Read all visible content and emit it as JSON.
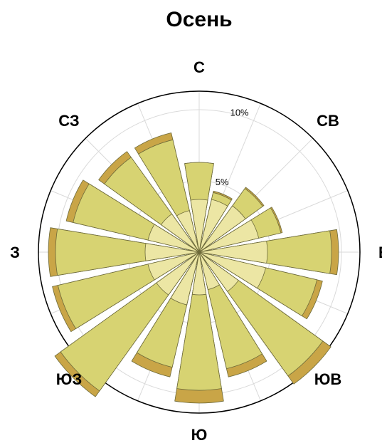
{
  "chart_data": {
    "type": "wind_rose",
    "title": "Осень",
    "radial_ticks": [
      {
        "value": 5,
        "label": "5%"
      },
      {
        "value": 10,
        "label": "10%"
      }
    ],
    "rmax": 11.3,
    "direction_labels": [
      "С",
      "СВ",
      "В",
      "ЮВ",
      "Ю",
      "ЮЗ",
      "З",
      "СЗ"
    ],
    "sector_directions": [
      "N",
      "NNE",
      "NE",
      "ENE",
      "E",
      "ESE",
      "SE",
      "SSE",
      "S",
      "SSW",
      "SW",
      "WSW",
      "W",
      "WNW",
      "NW",
      "NNW"
    ],
    "series": [
      {
        "name": "",
        "color": "#ece6a4",
        "values": [
          3.7,
          3.8,
          4.0,
          4.3,
          4.8,
          4.8,
          3.4,
          2.7,
          3.0,
          3.8,
          3.7,
          3.7,
          3.8,
          3.7,
          3.3,
          3.0
        ]
      },
      {
        "name": "",
        "color": "#d7d372",
        "values": [
          6.3,
          4.3,
          5.5,
          5.9,
          9.3,
          8.5,
          10.7,
          8.4,
          9.7,
          8.3,
          12.0,
          10.2,
          10.1,
          9.1,
          8.2,
          8.1
        ]
      },
      {
        "name": "",
        "color": "#c9a547",
        "values": [
          6.3,
          4.4,
          5.6,
          6.0,
          9.8,
          8.9,
          11.4,
          9.0,
          10.6,
          9.0,
          12.5,
          10.6,
          10.6,
          9.6,
          8.7,
          8.6
        ]
      }
    ]
  }
}
